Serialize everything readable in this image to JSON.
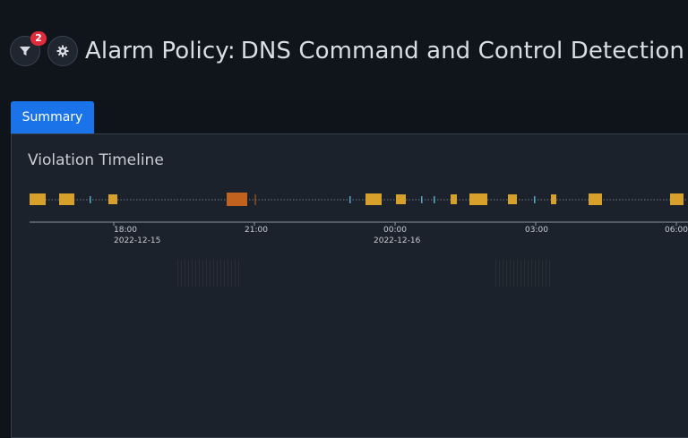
{
  "header": {
    "title_prefix": "Alarm Policy:",
    "title": "DNS Command and Control Detection",
    "filter_badge": "2"
  },
  "tabs": [
    {
      "label": "Summary",
      "active": true
    }
  ],
  "summary": {
    "heading": "Violation Timeline",
    "ticks": [
      {
        "time": "18:00",
        "date": "2022-12-15"
      },
      {
        "time": "21:00",
        "date": ""
      },
      {
        "time": "00:00",
        "date": "2022-12-16"
      },
      {
        "time": "03:00",
        "date": ""
      },
      {
        "time": "06:00",
        "date": ""
      }
    ]
  },
  "colors": {
    "violation": "#d6a02a",
    "violation_highlight": "#c1621f",
    "accent": "#1a73e8",
    "badge": "#e02b3c"
  }
}
